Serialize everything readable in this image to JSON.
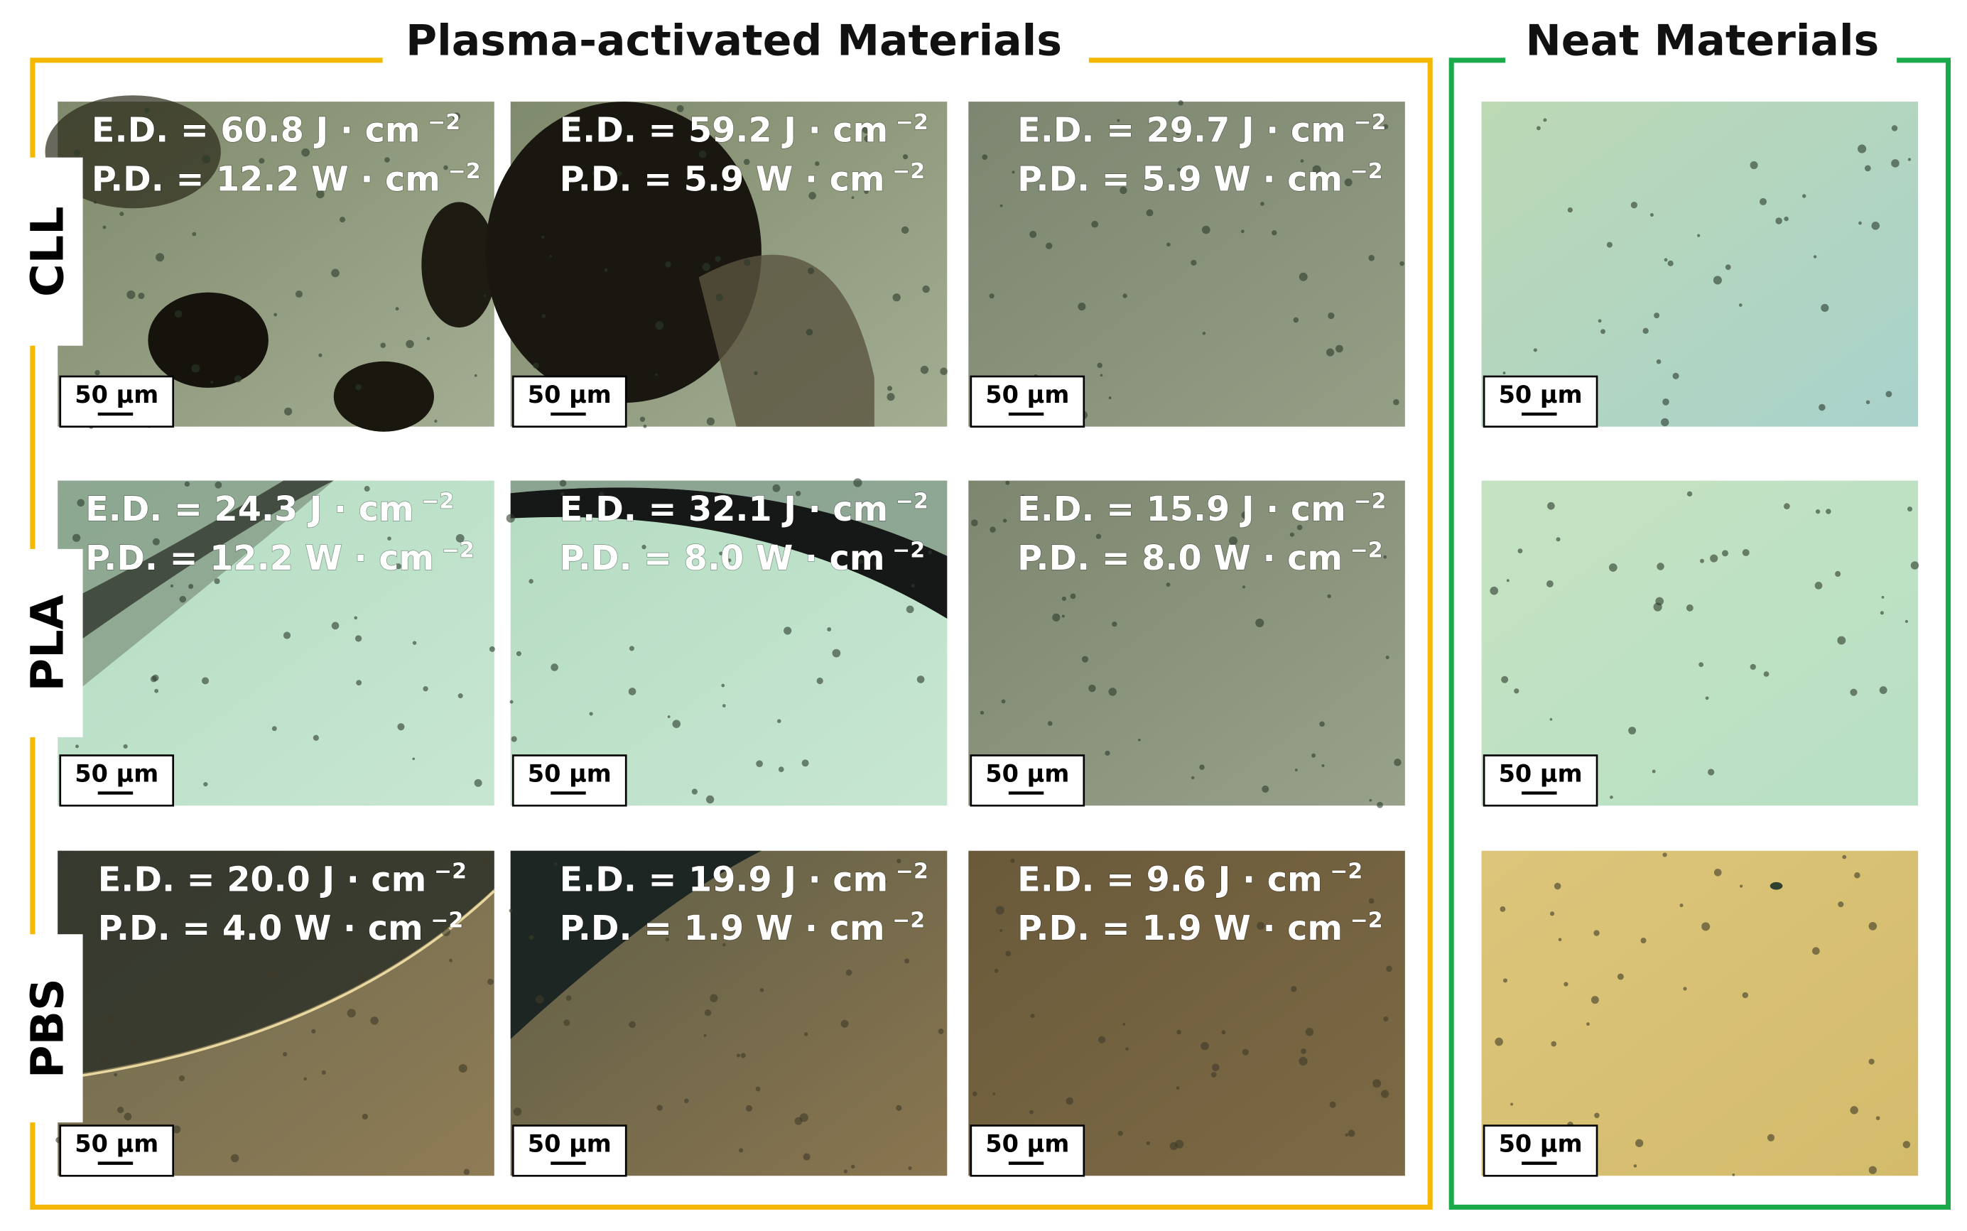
{
  "sections": {
    "plasma_title": "Plasma-activated Materials",
    "neat_title": "Neat Materials"
  },
  "rows": [
    {
      "label": "CLL",
      "cells": [
        {
          "ed": "E.D. = 60.8 J · cm",
          "ed_exp": "−2",
          "pd": "P.D. = 12.2 W · cm",
          "pd_exp": "−2",
          "scale": "50 µm"
        },
        {
          "ed": "E.D. = 59.2 J · cm",
          "ed_exp": "−2",
          "pd": "P.D. = 5.9 W · cm",
          "pd_exp": "−2",
          "scale": "50 µm"
        },
        {
          "ed": "E.D. = 29.7 J · cm",
          "ed_exp": "−2",
          "pd": "P.D. = 5.9 W · cm",
          "pd_exp": "−2",
          "scale": "50 µm"
        }
      ],
      "neat": {
        "scale": "50 µm"
      }
    },
    {
      "label": "PLA",
      "cells": [
        {
          "ed": "E.D. = 24.3 J · cm",
          "ed_exp": "−2",
          "pd": "P.D. = 12.2 W · cm",
          "pd_exp": "−2",
          "scale": "50 µm"
        },
        {
          "ed": "E.D. = 32.1 J · cm",
          "ed_exp": "−2",
          "pd": "P.D. = 8.0 W · cm",
          "pd_exp": "−2",
          "scale": "50 µm"
        },
        {
          "ed": "E.D. = 15.9 J · cm",
          "ed_exp": "−2",
          "pd": "P.D. = 8.0 W · cm",
          "pd_exp": "−2",
          "scale": "50 µm"
        }
      ],
      "neat": {
        "scale": "50 µm"
      }
    },
    {
      "label": "PBS",
      "cells": [
        {
          "ed": "E.D. = 20.0 J · cm",
          "ed_exp": "−2",
          "pd": "P.D. = 4.0 W · cm",
          "pd_exp": "−2",
          "scale": "50 µm"
        },
        {
          "ed": "E.D. = 19.9 J · cm",
          "ed_exp": "−2",
          "pd": "P.D. = 1.9 W · cm",
          "pd_exp": "−2",
          "scale": "50 µm"
        },
        {
          "ed": "E.D. = 9.6 J · cm",
          "ed_exp": "−2",
          "pd": "P.D. = 1.9 W · cm",
          "pd_exp": "−2",
          "scale": "50 µm"
        }
      ],
      "neat": {
        "scale": "50 µm"
      }
    }
  ]
}
